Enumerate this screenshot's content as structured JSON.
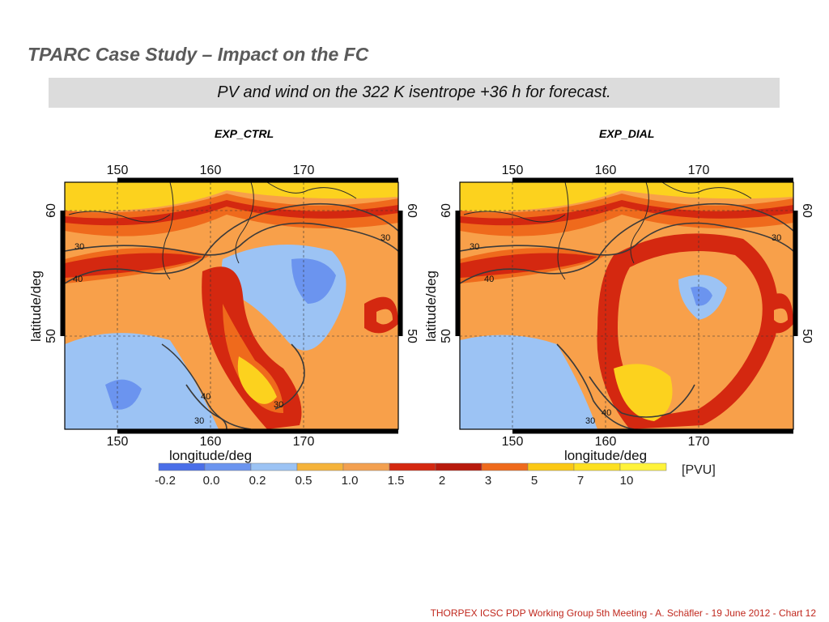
{
  "slide": {
    "title": "TPARC Case Study – Impact on the FC",
    "subtitle": "PV and wind on the 322 K isentrope +36 h for forecast.",
    "footer": "THORPEX ICSC PDP Working Group 5th Meeting - A. Schäfler - 19 June 2012 - Chart 12"
  },
  "panels": [
    {
      "label": "EXP_CTRL",
      "top_ticks": [
        "150",
        "160",
        "170"
      ],
      "bottom_ticks": [
        "150",
        "160",
        "170"
      ],
      "left_ticks": [
        "60",
        "50"
      ],
      "right_ticks": [
        "60",
        "50"
      ],
      "ylabel": "latitude/deg",
      "xlabel": "longitude/deg",
      "contour_labels": [
        "30",
        "40",
        "40",
        "30",
        "30",
        "30"
      ]
    },
    {
      "label": "EXP_DIAL",
      "top_ticks": [
        "150",
        "160",
        "170"
      ],
      "bottom_ticks": [
        "150",
        "160",
        "170"
      ],
      "left_ticks": [
        "60",
        "50"
      ],
      "right_ticks": [
        "60",
        "50"
      ],
      "ylabel": "latitude/deg",
      "xlabel": "longitude/deg",
      "contour_labels": [
        "30",
        "40",
        "30",
        "40",
        "30"
      ]
    }
  ],
  "colorbar": {
    "ticks": [
      "-0.2",
      "0.0",
      "0.2",
      "0.5",
      "1.0",
      "1.5",
      "2",
      "3",
      "5",
      "7",
      "10"
    ],
    "unit": "[PVU]",
    "colors": [
      "#4a6ee8",
      "#6b94ef",
      "#9cc3f4",
      "#f5b33a",
      "#f3a050",
      "#d42810",
      "#b81a0c",
      "#ef6a1c",
      "#fbc814",
      "#fde020",
      "#fff33a"
    ]
  },
  "map_colors": {
    "bright_red": "#d42810",
    "orange": "#ef6a1c",
    "light_orange": "#f8a04a",
    "yellow": "#fcd21e",
    "light_yellow": "#fff040",
    "light_blue": "#9cc3f4",
    "mid_blue": "#6b94ef",
    "dark_blue": "#4a6ee8",
    "coast": "#2a2a2a",
    "contour": "#3a3a3a"
  }
}
